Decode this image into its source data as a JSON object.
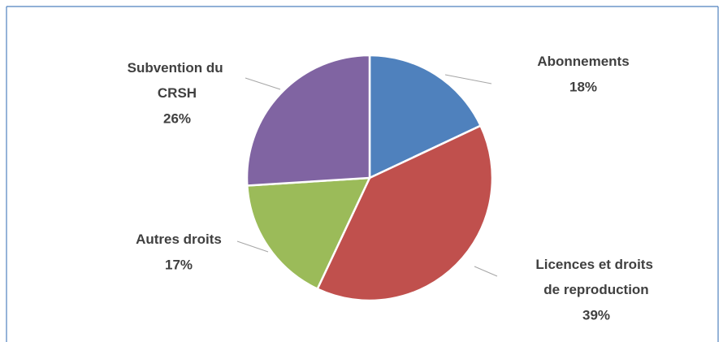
{
  "chart_data": {
    "type": "pie",
    "categories": [
      "Abonnements",
      "Licences et droits de reproduction",
      "Autres droits",
      "Subvention du CRSH"
    ],
    "values": [
      18,
      39,
      17,
      26
    ],
    "value_labels": [
      "18%",
      "39%",
      "17%",
      "26%"
    ],
    "colors": [
      "#4f81bd",
      "#c0504d",
      "#9bbb59",
      "#8064a2"
    ]
  }
}
